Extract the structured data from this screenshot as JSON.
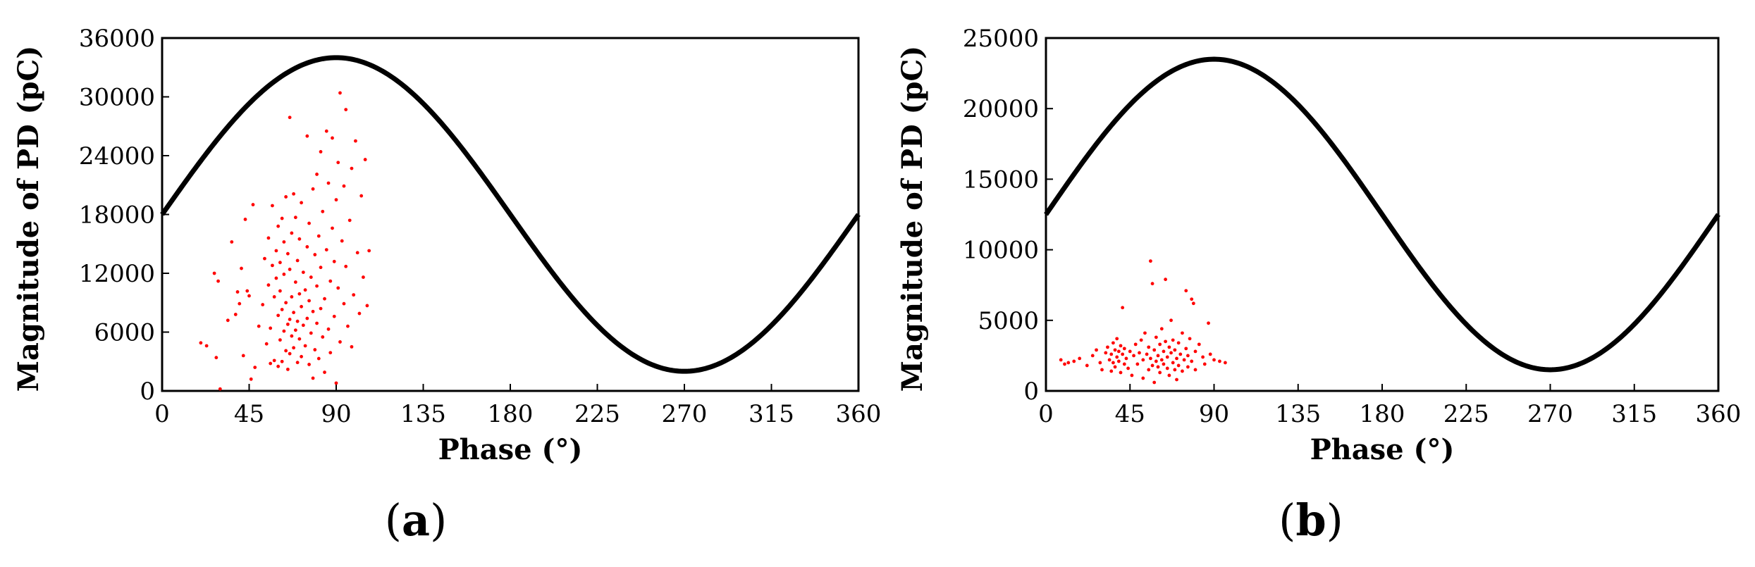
{
  "chart_data": [
    {
      "type": "scatter",
      "panel_label": "a",
      "xlabel": "Phase (°)",
      "ylabel": "Magnitude of PD (pC)",
      "xlim": [
        0,
        360
      ],
      "ylim": [
        0,
        36000
      ],
      "xticks": [
        0,
        45,
        90,
        135,
        180,
        225,
        270,
        315,
        360
      ],
      "xtick_labels": [
        "0",
        "45",
        "90",
        "135",
        "180",
        "225",
        "270",
        "315",
        "360"
      ],
      "yticks": [
        0,
        6000,
        12000,
        18000,
        24000,
        30000,
        36000
      ],
      "ytick_labels": [
        "0",
        "6000",
        "12000",
        "18000",
        "24000",
        "30000",
        "36000"
      ],
      "grid": false,
      "series": [
        {
          "kind": "sine",
          "color": "#000000",
          "offset": 18000,
          "amplitude": 16000
        },
        {
          "kind": "points",
          "color": "#ff0000",
          "points": [
            [
              20,
              4900
            ],
            [
              23,
              4600
            ],
            [
              27,
              12000
            ],
            [
              28,
              3400
            ],
            [
              29,
              11200
            ],
            [
              30,
              200
            ],
            [
              34,
              7200
            ],
            [
              36,
              15200
            ],
            [
              38,
              7800
            ],
            [
              39,
              10100
            ],
            [
              40,
              8900
            ],
            [
              41,
              12500
            ],
            [
              42,
              3600
            ],
            [
              43,
              17500
            ],
            [
              44,
              10200
            ],
            [
              45,
              9700
            ],
            [
              46,
              1200
            ],
            [
              47,
              19000
            ],
            [
              48,
              2400
            ],
            [
              50,
              6600
            ],
            [
              52,
              8800
            ],
            [
              53,
              13500
            ],
            [
              54,
              4800
            ],
            [
              55,
              10800
            ],
            [
              55,
              15600
            ],
            [
              56,
              2800
            ],
            [
              56,
              6400
            ],
            [
              57,
              18900
            ],
            [
              57,
              12800
            ],
            [
              58,
              3100
            ],
            [
              58,
              9600
            ],
            [
              59,
              11500
            ],
            [
              59,
              14300
            ],
            [
              60,
              2500
            ],
            [
              60,
              7700
            ],
            [
              60,
              16800
            ],
            [
              61,
              5200
            ],
            [
              61,
              10200
            ],
            [
              61,
              13100
            ],
            [
              62,
              3000
            ],
            [
              62,
              8300
            ],
            [
              62,
              17600
            ],
            [
              63,
              6100
            ],
            [
              63,
              11900
            ],
            [
              63,
              15200
            ],
            [
              64,
              4100
            ],
            [
              64,
              9000
            ],
            [
              64,
              19800
            ],
            [
              65,
              2200
            ],
            [
              65,
              6800
            ],
            [
              65,
              14000
            ],
            [
              66,
              3800
            ],
            [
              66,
              7300
            ],
            [
              66,
              12400
            ],
            [
              66,
              27900
            ],
            [
              67,
              5600
            ],
            [
              67,
              9600
            ],
            [
              67,
              16100
            ],
            [
              68,
              4400
            ],
            [
              68,
              8000
            ],
            [
              68,
              20100
            ],
            [
              69,
              6200
            ],
            [
              69,
              11100
            ],
            [
              69,
              17700
            ],
            [
              70,
              2900
            ],
            [
              70,
              7100
            ],
            [
              70,
              13300
            ],
            [
              71,
              5300
            ],
            [
              71,
              9900
            ],
            [
              71,
              15500
            ],
            [
              72,
              3500
            ],
            [
              72,
              8600
            ],
            [
              72,
              19200
            ],
            [
              73,
              6700
            ],
            [
              73,
              12100
            ],
            [
              74,
              4600
            ],
            [
              74,
              10300
            ],
            [
              75,
              7400
            ],
            [
              75,
              14700
            ],
            [
              75,
              26000
            ],
            [
              76,
              2700
            ],
            [
              76,
              9200
            ],
            [
              76,
              17100
            ],
            [
              77,
              5900
            ],
            [
              77,
              11600
            ],
            [
              78,
              1300
            ],
            [
              78,
              8100
            ],
            [
              78,
              20600
            ],
            [
              79,
              4200
            ],
            [
              79,
              13900
            ],
            [
              80,
              6900
            ],
            [
              80,
              10700
            ],
            [
              80,
              22100
            ],
            [
              81,
              3300
            ],
            [
              81,
              15800
            ],
            [
              82,
              8400
            ],
            [
              82,
              12600
            ],
            [
              82,
              24400
            ],
            [
              83,
              5500
            ],
            [
              83,
              18300
            ],
            [
              84,
              1900
            ],
            [
              84,
              9400
            ],
            [
              85,
              14400
            ],
            [
              85,
              26500
            ],
            [
              86,
              6300
            ],
            [
              86,
              21200
            ],
            [
              87,
              11200
            ],
            [
              87,
              3900
            ],
            [
              88,
              16600
            ],
            [
              88,
              25800
            ],
            [
              89,
              7600
            ],
            [
              89,
              13200
            ],
            [
              90,
              800
            ],
            [
              90,
              19500
            ],
            [
              91,
              10500
            ],
            [
              91,
              23300
            ],
            [
              92,
              5000
            ],
            [
              92,
              30400
            ],
            [
              93,
              15300
            ],
            [
              94,
              8900
            ],
            [
              94,
              20900
            ],
            [
              95,
              12700
            ],
            [
              95,
              28700
            ],
            [
              96,
              6600
            ],
            [
              97,
              17400
            ],
            [
              98,
              4500
            ],
            [
              98,
              22700
            ],
            [
              99,
              9800
            ],
            [
              100,
              25500
            ],
            [
              101,
              14100
            ],
            [
              102,
              7900
            ],
            [
              103,
              19900
            ],
            [
              104,
              11600
            ],
            [
              105,
              23600
            ],
            [
              106,
              8700
            ],
            [
              107,
              14300
            ]
          ]
        }
      ]
    },
    {
      "type": "scatter",
      "panel_label": "b",
      "xlabel": "Phase (°)",
      "ylabel": "Magnitude of PD (pC)",
      "xlim": [
        0,
        360
      ],
      "ylim": [
        0,
        25000
      ],
      "xticks": [
        0,
        45,
        90,
        135,
        180,
        225,
        270,
        315,
        360
      ],
      "xtick_labels": [
        "0",
        "45",
        "90",
        "135",
        "180",
        "225",
        "270",
        "315",
        "360"
      ],
      "yticks": [
        0,
        5000,
        10000,
        15000,
        20000,
        25000
      ],
      "ytick_labels": [
        "0",
        "5000",
        "10000",
        "15000",
        "20000",
        "25000"
      ],
      "grid": false,
      "series": [
        {
          "kind": "sine",
          "color": "#000000",
          "offset": 12500,
          "amplitude": 11000
        },
        {
          "kind": "points",
          "color": "#ff0000",
          "points": [
            [
              8,
              2200
            ],
            [
              10,
              1900
            ],
            [
              12,
              2000
            ],
            [
              15,
              2100
            ],
            [
              18,
              2300
            ],
            [
              22,
              1800
            ],
            [
              25,
              2500
            ],
            [
              27,
              2900
            ],
            [
              29,
              2000
            ],
            [
              30,
              1500
            ],
            [
              32,
              2700
            ],
            [
              33,
              3100
            ],
            [
              34,
              2200
            ],
            [
              35,
              1400
            ],
            [
              35,
              2600
            ],
            [
              36,
              3400
            ],
            [
              36,
              2000
            ],
            [
              37,
              2900
            ],
            [
              37,
              1700
            ],
            [
              38,
              2400
            ],
            [
              38,
              3700
            ],
            [
              39,
              2100
            ],
            [
              39,
              2800
            ],
            [
              40,
              1300
            ],
            [
              40,
              3200
            ],
            [
              41,
              2600
            ],
            [
              41,
              5900
            ],
            [
              42,
              1900
            ],
            [
              42,
              3000
            ],
            [
              43,
              2300
            ],
            [
              44,
              1600
            ],
            [
              45,
              2800
            ],
            [
              46,
              1100
            ],
            [
              47,
              2500
            ],
            [
              48,
              3300
            ],
            [
              49,
              1900
            ],
            [
              50,
              2700
            ],
            [
              51,
              3600
            ],
            [
              52,
              2200
            ],
            [
              52,
              900
            ],
            [
              53,
              4100
            ],
            [
              54,
              2600
            ],
            [
              55,
              1500
            ],
            [
              55,
              3100
            ],
            [
              56,
              9200
            ],
            [
              56,
              2300
            ],
            [
              57,
              7600
            ],
            [
              57,
              1800
            ],
            [
              58,
              2900
            ],
            [
              58,
              600
            ],
            [
              59,
              2100
            ],
            [
              59,
              3800
            ],
            [
              60,
              1700
            ],
            [
              60,
              2500
            ],
            [
              61,
              3300
            ],
            [
              61,
              1300
            ],
            [
              62,
              2200
            ],
            [
              62,
              4400
            ],
            [
              63,
              1900
            ],
            [
              63,
              2800
            ],
            [
              64,
              3500
            ],
            [
              64,
              7900
            ],
            [
              65,
              1600
            ],
            [
              65,
              2400
            ],
            [
              66,
              3100
            ],
            [
              66,
              1100
            ],
            [
              67,
              2700
            ],
            [
              67,
              5000
            ],
            [
              68,
              2000
            ],
            [
              68,
              3600
            ],
            [
              69,
              1500
            ],
            [
              69,
              2900
            ],
            [
              70,
              2300
            ],
            [
              70,
              800
            ],
            [
              71,
              3400
            ],
            [
              71,
              1800
            ],
            [
              72,
              2600
            ],
            [
              73,
              4100
            ],
            [
              73,
              1400
            ],
            [
              74,
              2200
            ],
            [
              75,
              3000
            ],
            [
              75,
              7100
            ],
            [
              76,
              1700
            ],
            [
              76,
              2500
            ],
            [
              77,
              3700
            ],
            [
              78,
              6500
            ],
            [
              78,
              2100
            ],
            [
              79,
              6200
            ],
            [
              80,
              1500
            ],
            [
              80,
              2800
            ],
            [
              82,
              3300
            ],
            [
              84,
              2400
            ],
            [
              85,
              1900
            ],
            [
              87,
              4800
            ],
            [
              88,
              2600
            ],
            [
              90,
              2200
            ],
            [
              93,
              2100
            ],
            [
              96,
              2000
            ]
          ]
        }
      ]
    }
  ]
}
